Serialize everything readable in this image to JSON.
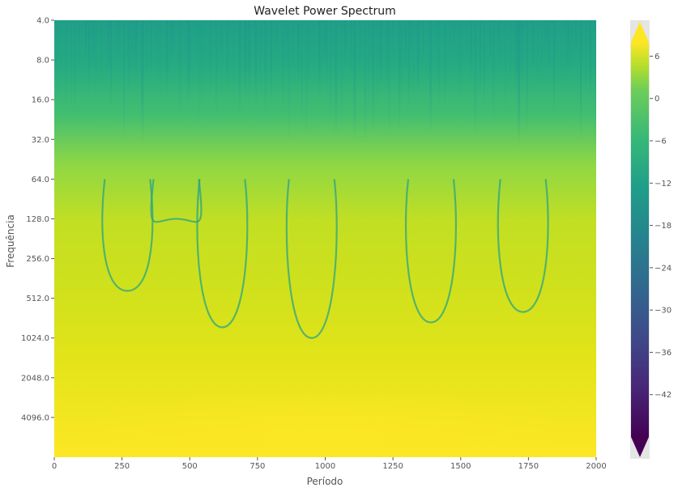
{
  "chart_data": {
    "type": "heatmap",
    "title": "Wavelet Power Spectrum",
    "xlabel": "Período",
    "ylabel": "Frequência",
    "xlim": [
      0,
      2000
    ],
    "x_ticks": [
      "0",
      "250",
      "500",
      "750",
      "1000",
      "1250",
      "1500",
      "1750",
      "2000"
    ],
    "y_scale": "log2",
    "y_inverted": true,
    "ylim": [
      4,
      8192
    ],
    "y_ticks": [
      {
        "value": 4,
        "label": "4.0"
      },
      {
        "value": 8,
        "label": "8.0"
      },
      {
        "value": 16,
        "label": "16.0"
      },
      {
        "value": 32,
        "label": "32.0"
      },
      {
        "value": 64,
        "label": "64.0"
      },
      {
        "value": 128,
        "label": "128.0"
      },
      {
        "value": 256,
        "label": "256.0"
      },
      {
        "value": 512,
        "label": "512.0"
      },
      {
        "value": 1024,
        "label": "1024.0"
      },
      {
        "value": 2048,
        "label": "2048.0"
      },
      {
        "value": 4096,
        "label": "4096.0"
      }
    ],
    "colormap": "viridis",
    "colorbar": {
      "range": [
        -48,
        8
      ],
      "extend": "both",
      "ticks": [
        -42,
        -36,
        -30,
        -24,
        -18,
        -12,
        -6,
        0,
        6
      ],
      "tick_labels": [
        "−42",
        "−36",
        "−30",
        "−24",
        "−18",
        "−12",
        "−6",
        "0",
        "6"
      ]
    },
    "boundary_dips": [
      {
        "x": 270,
        "bottom": 450
      },
      {
        "x": 450,
        "bottom": 128
      },
      {
        "x": 620,
        "bottom": 850
      },
      {
        "x": 950,
        "bottom": 1024
      },
      {
        "x": 1390,
        "bottom": 780
      },
      {
        "x": 1730,
        "bottom": 650
      }
    ],
    "background": "#e5e5e5",
    "grid": false
  }
}
